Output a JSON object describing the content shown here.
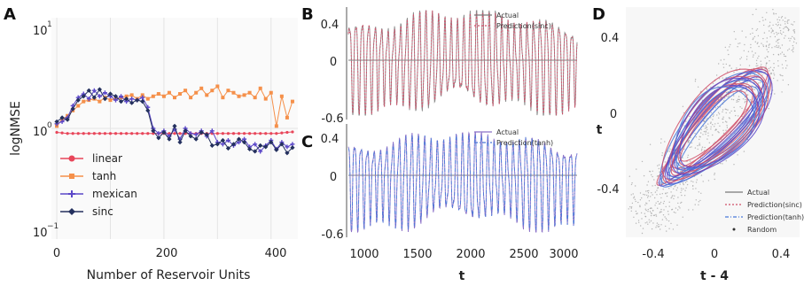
{
  "panels": {
    "a": "A",
    "b": "B",
    "c": "C",
    "d": "D"
  },
  "colors": {
    "linear": "#e8465a",
    "tanh": "#f5904a",
    "mexican": "#5b47c8",
    "sinc": "#24305e",
    "actual_b": "#8a8a8a",
    "pred_sinc": "#d0506a",
    "actual_c": "#8a70c8",
    "pred_tanh": "#4a78d8",
    "random": "#9a9a9a"
  },
  "chart_data": [
    {
      "id": "A",
      "type": "line",
      "xlabel": "Number of Reservoir Units",
      "ylabel": "logNMSE",
      "yscale": "log",
      "xlim": [
        -10,
        450
      ],
      "ylim": [
        0.1,
        10
      ],
      "x_ticks": [
        "0",
        "200",
        "400"
      ],
      "y_ticks": {
        "top": "10",
        "top_exp": "1",
        "mid": "10",
        "mid_exp": "0",
        "bottom": "10",
        "bottom_exp": "−1"
      },
      "grid": true,
      "legend": "lower-left",
      "x": [
        0,
        10,
        20,
        30,
        40,
        50,
        60,
        70,
        80,
        90,
        100,
        110,
        120,
        130,
        140,
        150,
        160,
        170,
        180,
        190,
        200,
        210,
        220,
        230,
        240,
        250,
        260,
        270,
        280,
        290,
        300,
        310,
        320,
        330,
        340,
        350,
        360,
        370,
        380,
        390,
        400,
        410,
        420,
        430,
        440
      ],
      "series": [
        {
          "name": "linear",
          "marker": "circle",
          "values": [
            0.92,
            0.91,
            0.9,
            0.9,
            0.9,
            0.9,
            0.9,
            0.9,
            0.9,
            0.9,
            0.9,
            0.9,
            0.9,
            0.9,
            0.9,
            0.9,
            0.9,
            0.9,
            0.9,
            0.9,
            0.9,
            0.9,
            0.9,
            0.9,
            0.9,
            0.9,
            0.9,
            0.9,
            0.9,
            0.9,
            0.9,
            0.9,
            0.9,
            0.9,
            0.9,
            0.9,
            0.9,
            0.9,
            0.9,
            0.9,
            0.9,
            0.9,
            0.91,
            0.92,
            0.93
          ]
        },
        {
          "name": "tanh",
          "marker": "square",
          "values": [
            1.05,
            1.2,
            1.3,
            1.45,
            1.6,
            1.75,
            1.8,
            1.85,
            1.75,
            1.9,
            1.8,
            1.85,
            1.9,
            1.95,
            2.0,
            1.85,
            2.0,
            1.85,
            1.95,
            2.05,
            1.95,
            2.1,
            1.9,
            2.05,
            2.2,
            1.9,
            2.1,
            2.3,
            2.0,
            2.2,
            2.4,
            1.9,
            2.2,
            2.1,
            1.95,
            2.0,
            2.1,
            1.9,
            2.3,
            1.85,
            2.1,
            1.05,
            1.95,
            1.25,
            1.75
          ]
        },
        {
          "name": "mexican",
          "marker": "plus",
          "values": [
            1.1,
            1.15,
            1.25,
            1.6,
            1.9,
            2.05,
            1.85,
            2.2,
            1.95,
            2.1,
            1.95,
            1.8,
            1.95,
            1.75,
            1.85,
            1.8,
            1.9,
            1.55,
            1.0,
            0.9,
            0.95,
            0.85,
            0.98,
            0.8,
            1.0,
            0.9,
            0.88,
            0.95,
            0.85,
            0.95,
            0.75,
            0.72,
            0.78,
            0.7,
            0.75,
            0.8,
            0.68,
            0.72,
            0.62,
            0.7,
            0.78,
            0.65,
            0.75,
            0.68,
            0.72
          ]
        },
        {
          "name": "sinc",
          "marker": "diamond",
          "values": [
            1.15,
            1.25,
            1.2,
            1.5,
            1.8,
            1.95,
            2.2,
            1.9,
            2.25,
            1.85,
            2.05,
            1.95,
            1.75,
            1.85,
            1.7,
            1.8,
            1.75,
            1.45,
            0.95,
            0.82,
            0.92,
            0.8,
            1.05,
            0.75,
            0.95,
            0.85,
            0.8,
            0.92,
            0.88,
            0.7,
            0.72,
            0.78,
            0.66,
            0.72,
            0.8,
            0.75,
            0.65,
            0.62,
            0.7,
            0.68,
            0.75,
            0.64,
            0.72,
            0.6,
            0.67
          ]
        }
      ]
    },
    {
      "id": "B",
      "type": "line",
      "xlabel": "",
      "ylabel": "",
      "xlim": [
        900,
        3100
      ],
      "ylim": [
        -0.6,
        0.55
      ],
      "y_ticks": [
        "0.4",
        "0",
        "-0.6"
      ],
      "legend": "top-right",
      "series": [
        {
          "name": "Actual"
        },
        {
          "name": "Prediction(sinc)"
        }
      ]
    },
    {
      "id": "C",
      "type": "line",
      "xlabel": "t",
      "ylabel": "",
      "xlim": [
        900,
        3100
      ],
      "ylim": [
        -0.6,
        0.5
      ],
      "x_ticks": [
        "1000",
        "1500",
        "2000",
        "2500",
        "3000"
      ],
      "y_ticks": [
        "0.4",
        "0",
        "-0.6"
      ],
      "legend": "top-right",
      "series": [
        {
          "name": "Actual"
        },
        {
          "name": "Prediction(tanh)"
        }
      ]
    },
    {
      "id": "D",
      "type": "scatter",
      "xlabel": "t - 4",
      "ylabel": "t",
      "xlim": [
        -0.6,
        0.55
      ],
      "ylim": [
        -0.6,
        0.55
      ],
      "x_ticks": [
        "-0.4",
        "0",
        "0.4"
      ],
      "y_ticks": [
        "0.4",
        "0",
        "-0.4"
      ],
      "legend": "bottom-right",
      "series": [
        {
          "name": "Actual"
        },
        {
          "name": "Prediction(sinc)"
        },
        {
          "name": "Prediction(tanh)"
        },
        {
          "name": "Random"
        }
      ]
    }
  ]
}
